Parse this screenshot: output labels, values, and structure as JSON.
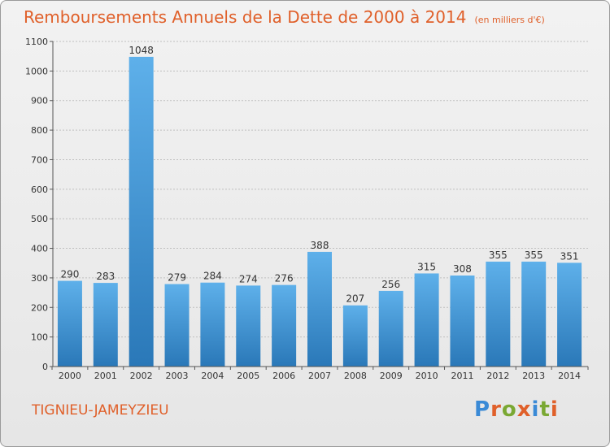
{
  "title": "Remboursements Annuels de la Dette de 2000 à 2014",
  "subtitle": "(en milliers d'€)",
  "commune": "TIGNIEU-JAMEYZIEU",
  "logo": "Proxiti",
  "colors": {
    "title": "#e0602a",
    "bar_top": "#5eb0ea",
    "bar_bottom": "#2a78b8",
    "grid": "#bfbfbf",
    "axis_text": "#333333",
    "logo_letters": [
      "#3a8ad6",
      "#e0602a",
      "#7aa833",
      "#e0602a",
      "#3a8ad6",
      "#7aa833",
      "#e0602a"
    ]
  },
  "chart_data": {
    "type": "bar",
    "title": "Remboursements Annuels de la Dette de 2000 à 2014",
    "subtitle": "(en milliers d'€)",
    "xlabel": "",
    "ylabel": "",
    "categories": [
      "2000",
      "2001",
      "2002",
      "2003",
      "2004",
      "2005",
      "2006",
      "2007",
      "2008",
      "2009",
      "2010",
      "2011",
      "2012",
      "2013",
      "2014"
    ],
    "values": [
      290,
      283,
      1048,
      279,
      284,
      274,
      276,
      388,
      207,
      256,
      315,
      308,
      355,
      355,
      351
    ],
    "data_labels": [
      "290",
      "283",
      "1048",
      "279",
      "284",
      "274",
      "276",
      "388",
      "207",
      "256",
      "315",
      "308",
      "355",
      "355",
      "351"
    ],
    "ylim": [
      0,
      1100
    ],
    "yticks": [
      0,
      100,
      200,
      300,
      400,
      500,
      600,
      700,
      800,
      900,
      1000,
      1100
    ],
    "ytick_labels": [
      "0",
      "100",
      "200",
      "300",
      "400",
      "500",
      "600",
      "700",
      "800",
      "900",
      "1000",
      "1100"
    ],
    "grid": true,
    "legend": "none"
  }
}
